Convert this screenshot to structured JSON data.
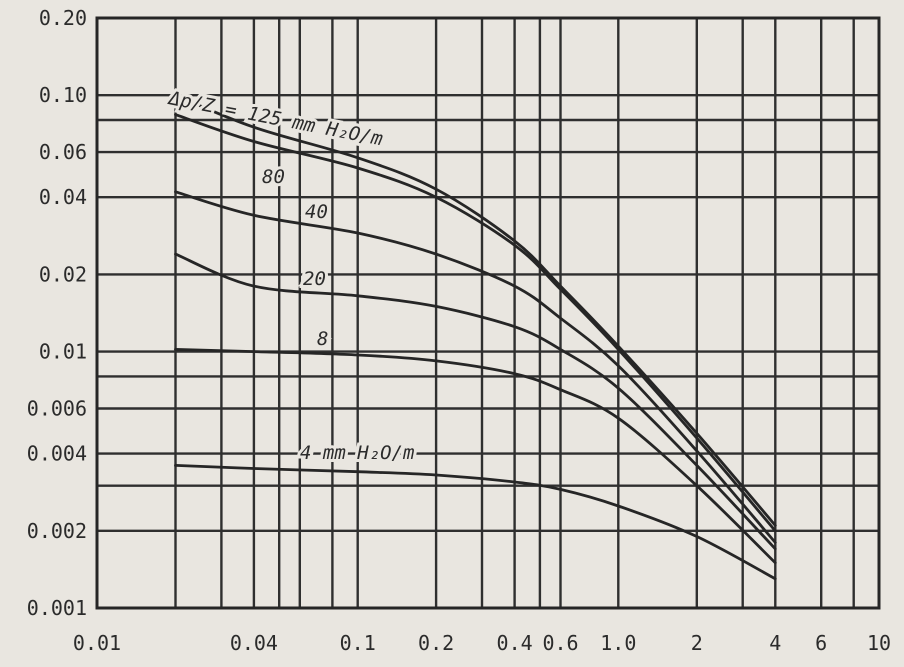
{
  "chart_data": {
    "type": "line",
    "title": "",
    "xlabel": "",
    "ylabel": "",
    "xscale": "log",
    "yscale": "log",
    "xlim": [
      0.01,
      10
    ],
    "ylim": [
      0.001,
      0.2
    ],
    "grid": true,
    "legend": "none",
    "x_ticks": [
      {
        "value": 0.01,
        "label": "0.01"
      },
      {
        "value": 0.04,
        "label": "0.04"
      },
      {
        "value": 0.1,
        "label": "0.1"
      },
      {
        "value": 0.2,
        "label": "0.2"
      },
      {
        "value": 0.4,
        "label": "0.4"
      },
      {
        "value": 0.6,
        "label": "0.6"
      },
      {
        "value": 1.0,
        "label": "1.0"
      },
      {
        "value": 2,
        "label": "2"
      },
      {
        "value": 4,
        "label": "4"
      },
      {
        "value": 6,
        "label": "6"
      },
      {
        "value": 10,
        "label": "10"
      }
    ],
    "y_ticks": [
      {
        "value": 0.2,
        "label": "0.20"
      },
      {
        "value": 0.1,
        "label": "0.10"
      },
      {
        "value": 0.06,
        "label": "0.06"
      },
      {
        "value": 0.04,
        "label": "0.04"
      },
      {
        "value": 0.02,
        "label": "0.02"
      },
      {
        "value": 0.01,
        "label": "0.01"
      },
      {
        "value": 0.006,
        "label": "0.006"
      },
      {
        "value": 0.004,
        "label": "0.004"
      },
      {
        "value": 0.002,
        "label": "0.002"
      },
      {
        "value": 0.001,
        "label": "0.001"
      }
    ],
    "x_grid": [
      0.02,
      0.03,
      0.04,
      0.05,
      0.06,
      0.08,
      0.1,
      0.2,
      0.3,
      0.4,
      0.5,
      0.6,
      1.0,
      2,
      3,
      4,
      6,
      8
    ],
    "y_grid": [
      0.1,
      0.08,
      0.06,
      0.04,
      0.02,
      0.01,
      0.008,
      0.006,
      0.004,
      0.003,
      0.002
    ],
    "series": [
      {
        "label": "Δp/Z = 125 mm H₂O/m",
        "x": [
          0.02,
          0.04,
          0.1,
          0.2,
          0.4,
          0.6,
          1.0,
          2,
          4
        ],
        "y": [
          0.1,
          0.075,
          0.057,
          0.043,
          0.027,
          0.018,
          0.0105,
          0.0048,
          0.0021
        ]
      },
      {
        "label": "80",
        "x": [
          0.02,
          0.04,
          0.1,
          0.2,
          0.4,
          0.6,
          1.0,
          2,
          4
        ],
        "y": [
          0.084,
          0.066,
          0.052,
          0.04,
          0.026,
          0.0175,
          0.0102,
          0.0046,
          0.002
        ]
      },
      {
        "label": "40",
        "x": [
          0.02,
          0.04,
          0.1,
          0.2,
          0.4,
          0.6,
          1.0,
          2,
          4
        ],
        "y": [
          0.042,
          0.034,
          0.029,
          0.024,
          0.018,
          0.0135,
          0.0088,
          0.0041,
          0.0018
        ]
      },
      {
        "label": "20",
        "x": [
          0.02,
          0.04,
          0.1,
          0.2,
          0.4,
          0.6,
          1.0,
          2,
          4
        ],
        "y": [
          0.024,
          0.018,
          0.0165,
          0.015,
          0.0125,
          0.0102,
          0.0072,
          0.0036,
          0.0017
        ]
      },
      {
        "label": "8",
        "x": [
          0.02,
          0.04,
          0.1,
          0.2,
          0.4,
          0.6,
          1.0,
          2,
          4
        ],
        "y": [
          0.0102,
          0.01,
          0.0097,
          0.0092,
          0.0082,
          0.0071,
          0.0055,
          0.003,
          0.0015
        ]
      },
      {
        "label": "4 mm H₂O/m",
        "x": [
          0.02,
          0.04,
          0.1,
          0.2,
          0.4,
          0.6,
          1.0,
          2,
          4
        ],
        "y": [
          0.0036,
          0.0035,
          0.0034,
          0.0033,
          0.0031,
          0.0029,
          0.0025,
          0.0019,
          0.0013
        ]
      }
    ]
  }
}
